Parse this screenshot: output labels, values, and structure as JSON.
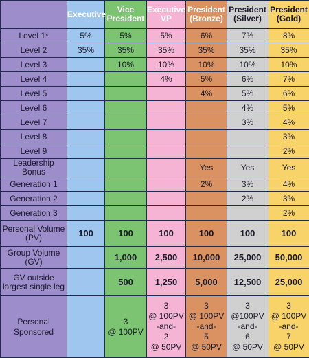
{
  "table": {
    "header": [
      null,
      "Executive",
      "Vice\nPresident",
      "Executive\nVP",
      "President\n(Bronze)",
      "President\n(Silver)",
      "President\n(Gold)"
    ],
    "rows": [
      [
        "Level 1*",
        "5%",
        "5%",
        "5%",
        "6%",
        "7%",
        "8%"
      ],
      [
        "Level 2",
        "35%",
        "35%",
        "35%",
        "35%",
        "35%",
        "35%"
      ],
      [
        "Level 3",
        null,
        "10%",
        "10%",
        "10%",
        "10%",
        "10%"
      ],
      [
        "Level 4",
        null,
        null,
        "4%",
        "5%",
        "6%",
        "7%"
      ],
      [
        "Level 5",
        null,
        null,
        null,
        "4%",
        "5%",
        "6%"
      ],
      [
        "Level 6",
        null,
        null,
        null,
        null,
        "4%",
        "5%"
      ],
      [
        "Level 7",
        null,
        null,
        null,
        null,
        "3%",
        "4%"
      ],
      [
        "Level 8",
        null,
        null,
        null,
        null,
        null,
        "3%"
      ],
      [
        "Level 9",
        null,
        null,
        null,
        null,
        null,
        "2%"
      ],
      [
        "Leadership Bonus",
        null,
        null,
        null,
        "Yes",
        "Yes",
        "Yes"
      ],
      [
        "Generation 1",
        null,
        null,
        null,
        "2%",
        "3%",
        "4%"
      ],
      [
        "Generation 2",
        null,
        null,
        null,
        null,
        "2%",
        "3%"
      ],
      [
        "Generation 3",
        null,
        null,
        null,
        null,
        null,
        "2%"
      ],
      [
        "Personal Volume\n(PV)",
        "100",
        "100",
        "100",
        "100",
        "100",
        "100"
      ],
      [
        "Group Volume\n(GV)",
        null,
        "1,000",
        "2,500",
        "10,000",
        "25,000",
        "50,000"
      ],
      [
        "GV outside\nlargest single leg",
        null,
        "500",
        "1,250",
        "5,000",
        "12,500",
        "25,000"
      ],
      [
        "Personal\nSponsored",
        null,
        "3\n@ 100PV",
        "3\n@ 100PV\n-and-\n2\n@ 50PV",
        "3\n@ 100PV\n-and-\n5\n@ 50PV",
        "3\n@100PV\n-and-\n6\n@ 50PV",
        "3\n@ 100PV\n-and-\n7\n@ 50PV"
      ]
    ]
  }
}
